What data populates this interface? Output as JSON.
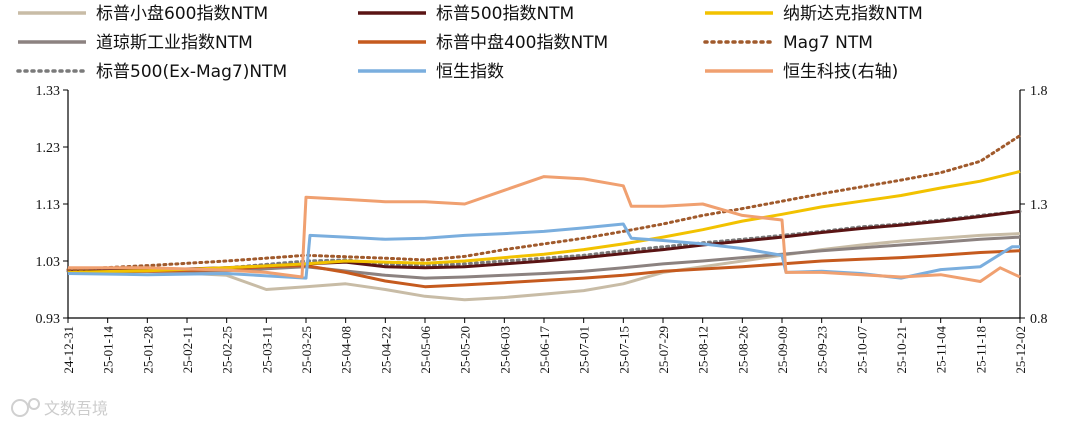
{
  "chart_data": {
    "type": "line",
    "title": "",
    "xlabel": "",
    "ylabel": "",
    "y_left": {
      "ticks": [
        "1.33",
        "1.23",
        "1.13",
        "1.03",
        "0.93"
      ],
      "range": [
        0.93,
        1.33
      ]
    },
    "y_right": {
      "ticks": [
        "1.8",
        "1.3",
        "0.8"
      ],
      "range": [
        0.8,
        1.8
      ]
    },
    "x_ticks": [
      "24-12-31",
      "25-01-14",
      "25-01-28",
      "25-02-11",
      "25-02-25",
      "25-03-11",
      "25-03-25",
      "25-04-08",
      "25-04-22",
      "25-05-06",
      "25-05-20",
      "25-06-03",
      "25-06-17",
      "25-07-01",
      "25-07-15",
      "25-07-29",
      "25-08-12",
      "25-08-26",
      "25-09-09",
      "25-09-23",
      "25-10-07",
      "25-10-21",
      "25-11-04",
      "25-11-18",
      "25-12-02"
    ],
    "legend_position": "top",
    "grid": false,
    "series": [
      {
        "name": "标普小盘600指数NTM",
        "axis": "left",
        "color": "#c8bca6",
        "style": "solid",
        "points": [
          [
            0,
            1.012
          ],
          [
            2,
            1.012
          ],
          [
            4,
            1.005
          ],
          [
            5,
            0.98
          ],
          [
            6,
            0.985
          ],
          [
            7,
            0.99
          ],
          [
            8,
            0.98
          ],
          [
            9,
            0.968
          ],
          [
            10,
            0.962
          ],
          [
            11,
            0.966
          ],
          [
            12,
            0.972
          ],
          [
            13,
            0.978
          ],
          [
            14,
            0.99
          ],
          [
            15,
            1.01
          ],
          [
            16,
            1.02
          ],
          [
            17,
            1.03
          ],
          [
            18,
            1.04
          ],
          [
            19,
            1.05
          ],
          [
            20,
            1.058
          ],
          [
            21,
            1.065
          ],
          [
            22,
            1.07
          ],
          [
            23,
            1.075
          ],
          [
            24,
            1.078
          ]
        ]
      },
      {
        "name": "道琼斯工业指数NTM",
        "axis": "left",
        "color": "#8c8280",
        "style": "solid",
        "points": [
          [
            0,
            1.01
          ],
          [
            2,
            1.012
          ],
          [
            4,
            1.013
          ],
          [
            6,
            1.02
          ],
          [
            8,
            1.005
          ],
          [
            9,
            1.0
          ],
          [
            10,
            1.002
          ],
          [
            11,
            1.005
          ],
          [
            12,
            1.008
          ],
          [
            13,
            1.012
          ],
          [
            14,
            1.018
          ],
          [
            15,
            1.025
          ],
          [
            16,
            1.03
          ],
          [
            17,
            1.036
          ],
          [
            18,
            1.042
          ],
          [
            19,
            1.048
          ],
          [
            20,
            1.053
          ],
          [
            21,
            1.058
          ],
          [
            22,
            1.063
          ],
          [
            23,
            1.068
          ],
          [
            24,
            1.072
          ]
        ]
      },
      {
        "name": "标普500(Ex-Mag7)NTM",
        "axis": "left",
        "color": "#7a7a7a",
        "style": "dotted",
        "points": [
          [
            0,
            1.012
          ],
          [
            2,
            1.013
          ],
          [
            4,
            1.018
          ],
          [
            6,
            1.03
          ],
          [
            7,
            1.032
          ],
          [
            8,
            1.025
          ],
          [
            9,
            1.022
          ],
          [
            10,
            1.025
          ],
          [
            11,
            1.03
          ],
          [
            12,
            1.035
          ],
          [
            13,
            1.04
          ],
          [
            14,
            1.048
          ],
          [
            15,
            1.055
          ],
          [
            16,
            1.062
          ],
          [
            17,
            1.068
          ],
          [
            18,
            1.075
          ],
          [
            19,
            1.082
          ],
          [
            20,
            1.09
          ],
          [
            21,
            1.095
          ],
          [
            22,
            1.102
          ],
          [
            23,
            1.11
          ],
          [
            24,
            1.117
          ]
        ]
      },
      {
        "name": "标普500指数NTM",
        "axis": "left",
        "color": "#5a1414",
        "style": "solid",
        "points": [
          [
            0,
            1.012
          ],
          [
            2,
            1.014
          ],
          [
            4,
            1.018
          ],
          [
            6,
            1.025
          ],
          [
            7,
            1.028
          ],
          [
            8,
            1.02
          ],
          [
            9,
            1.018
          ],
          [
            10,
            1.02
          ],
          [
            11,
            1.025
          ],
          [
            12,
            1.03
          ],
          [
            13,
            1.036
          ],
          [
            14,
            1.043
          ],
          [
            15,
            1.05
          ],
          [
            16,
            1.058
          ],
          [
            17,
            1.065
          ],
          [
            18,
            1.072
          ],
          [
            19,
            1.08
          ],
          [
            20,
            1.087
          ],
          [
            21,
            1.093
          ],
          [
            22,
            1.1
          ],
          [
            23,
            1.108
          ],
          [
            24,
            1.117
          ]
        ]
      },
      {
        "name": "标普中盘400指数NTM",
        "axis": "left",
        "color": "#c55a1e",
        "style": "solid",
        "points": [
          [
            0,
            1.012
          ],
          [
            2,
            1.012
          ],
          [
            4,
            1.015
          ],
          [
            5,
            1.02
          ],
          [
            6,
            1.022
          ],
          [
            7,
            1.01
          ],
          [
            8,
            0.995
          ],
          [
            9,
            0.985
          ],
          [
            10,
            0.988
          ],
          [
            11,
            0.992
          ],
          [
            12,
            0.996
          ],
          [
            13,
            1.0
          ],
          [
            14,
            1.005
          ],
          [
            15,
            1.012
          ],
          [
            16,
            1.016
          ],
          [
            17,
            1.02
          ],
          [
            18,
            1.025
          ],
          [
            19,
            1.03
          ],
          [
            20,
            1.033
          ],
          [
            21,
            1.036
          ],
          [
            22,
            1.04
          ],
          [
            23,
            1.045
          ],
          [
            24,
            1.048
          ]
        ]
      },
      {
        "name": "Mag7 NTM",
        "axis": "left",
        "color": "#a05a2c",
        "style": "dotted",
        "points": [
          [
            0,
            1.015
          ],
          [
            2,
            1.022
          ],
          [
            4,
            1.03
          ],
          [
            6,
            1.04
          ],
          [
            8,
            1.035
          ],
          [
            9,
            1.032
          ],
          [
            10,
            1.038
          ],
          [
            11,
            1.05
          ],
          [
            12,
            1.06
          ],
          [
            13,
            1.07
          ],
          [
            14,
            1.082
          ],
          [
            15,
            1.095
          ],
          [
            16,
            1.11
          ],
          [
            17,
            1.122
          ],
          [
            18,
            1.135
          ],
          [
            19,
            1.148
          ],
          [
            20,
            1.16
          ],
          [
            21,
            1.172
          ],
          [
            22,
            1.185
          ],
          [
            23,
            1.205
          ],
          [
            24,
            1.25
          ]
        ]
      },
      {
        "name": "纳斯达克指数NTM",
        "axis": "left",
        "color": "#f2c200",
        "style": "solid",
        "points": [
          [
            0,
            1.01
          ],
          [
            2,
            1.013
          ],
          [
            4,
            1.018
          ],
          [
            6,
            1.025
          ],
          [
            7,
            1.03
          ],
          [
            8,
            1.028
          ],
          [
            9,
            1.026
          ],
          [
            10,
            1.03
          ],
          [
            11,
            1.036
          ],
          [
            12,
            1.042
          ],
          [
            13,
            1.05
          ],
          [
            14,
            1.06
          ],
          [
            15,
            1.072
          ],
          [
            16,
            1.085
          ],
          [
            17,
            1.1
          ],
          [
            18,
            1.112
          ],
          [
            19,
            1.125
          ],
          [
            20,
            1.135
          ],
          [
            21,
            1.145
          ],
          [
            22,
            1.158
          ],
          [
            23,
            1.17
          ],
          [
            24,
            1.187
          ]
        ]
      },
      {
        "name": "恒生指数",
        "axis": "left",
        "color": "#7aaede",
        "style": "solid",
        "points": [
          [
            0,
            1.008
          ],
          [
            2,
            1.006
          ],
          [
            4,
            1.008
          ],
          [
            6,
            1.0
          ],
          [
            6.1,
            1.075
          ],
          [
            7,
            1.072
          ],
          [
            8,
            1.068
          ],
          [
            9,
            1.07
          ],
          [
            10,
            1.075
          ],
          [
            11,
            1.078
          ],
          [
            12,
            1.082
          ],
          [
            13,
            1.088
          ],
          [
            14,
            1.095
          ],
          [
            14.2,
            1.07
          ],
          [
            15,
            1.066
          ],
          [
            16,
            1.06
          ],
          [
            17,
            1.052
          ],
          [
            18,
            1.04
          ],
          [
            18.1,
            1.01
          ],
          [
            19,
            1.012
          ],
          [
            20,
            1.008
          ],
          [
            21,
            1.0
          ],
          [
            22,
            1.015
          ],
          [
            23,
            1.02
          ],
          [
            23.8,
            1.055
          ],
          [
            24,
            1.055
          ]
        ]
      },
      {
        "name": "恒生科技(右轴)",
        "axis": "right",
        "color": "#f0a070",
        "style": "solid",
        "points": [
          [
            0,
            1.02
          ],
          [
            2,
            1.02
          ],
          [
            4,
            1.01
          ],
          [
            5,
            1.0
          ],
          [
            5.9,
            0.98
          ],
          [
            6,
            1.33
          ],
          [
            7,
            1.32
          ],
          [
            8,
            1.31
          ],
          [
            9,
            1.31
          ],
          [
            10,
            1.3
          ],
          [
            11,
            1.36
          ],
          [
            12,
            1.42
          ],
          [
            13,
            1.41
          ],
          [
            14,
            1.38
          ],
          [
            14.2,
            1.29
          ],
          [
            15,
            1.29
          ],
          [
            16,
            1.3
          ],
          [
            17,
            1.25
          ],
          [
            18,
            1.23
          ],
          [
            18.1,
            1.0
          ],
          [
            19,
            1.0
          ],
          [
            20,
            0.99
          ],
          [
            21,
            0.98
          ],
          [
            22,
            0.99
          ],
          [
            23,
            0.96
          ],
          [
            23.5,
            1.02
          ],
          [
            24,
            0.98
          ]
        ]
      }
    ]
  },
  "watermark": "文数吾境"
}
